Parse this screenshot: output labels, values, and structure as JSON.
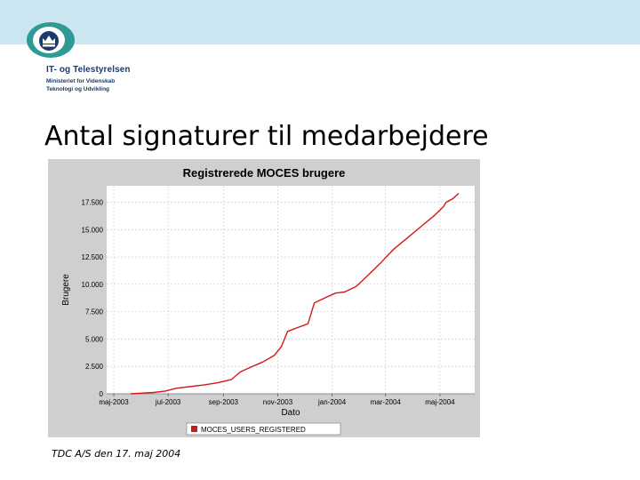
{
  "header": {
    "org_name": "IT- og Telestyrelsen",
    "ministry_line1": "Ministeriet for Videnskab",
    "ministry_line2": "Teknologi og Udvikling",
    "band_color": "#c9e6f1",
    "logo_icon": "crown-icon"
  },
  "slide": {
    "title": "Antal signaturer til medarbejdere",
    "footer": "TDC A/S den 17. maj 2004"
  },
  "chart_data": {
    "type": "line",
    "title": "Registrerede MOCES brugere",
    "xlabel": "Dato",
    "ylabel": "Brugere",
    "x_tick_labels": [
      "maj-2003",
      "jul-2003",
      "sep-2003",
      "nov-2003",
      "jan-2004",
      "mar-2004",
      "maj-2004"
    ],
    "y_tick_labels": [
      "0",
      "2.500",
      "5.000",
      "7.500",
      "10.000",
      "12.500",
      "15.000",
      "17.500"
    ],
    "y_ticks": [
      0,
      2500,
      5000,
      7500,
      10000,
      12500,
      15000,
      17500
    ],
    "ylim": [
      0,
      19000
    ],
    "grid": true,
    "legend_position": "bottom",
    "series": [
      {
        "name": "MOCES_USERS_REGISTERED",
        "color": "#d01818",
        "points": [
          [
            "2003-05-20",
            0
          ],
          [
            "2003-06-01",
            60
          ],
          [
            "2003-06-15",
            120
          ],
          [
            "2003-06-28",
            250
          ],
          [
            "2003-07-10",
            500
          ],
          [
            "2003-07-25",
            650
          ],
          [
            "2003-08-10",
            800
          ],
          [
            "2003-08-25",
            1000
          ],
          [
            "2003-09-10",
            1300
          ],
          [
            "2003-09-20",
            2000
          ],
          [
            "2003-10-01",
            2400
          ],
          [
            "2003-10-15",
            2900
          ],
          [
            "2003-10-28",
            3500
          ],
          [
            "2003-11-05",
            4300
          ],
          [
            "2003-11-12",
            5700
          ],
          [
            "2003-11-25",
            6100
          ],
          [
            "2003-12-05",
            6400
          ],
          [
            "2003-12-12",
            8300
          ],
          [
            "2003-12-25",
            8800
          ],
          [
            "2004-01-05",
            9200
          ],
          [
            "2004-01-15",
            9300
          ],
          [
            "2004-01-28",
            9800
          ],
          [
            "2004-02-10",
            10800
          ],
          [
            "2004-02-25",
            12000
          ],
          [
            "2004-03-10",
            13200
          ],
          [
            "2004-03-25",
            14200
          ],
          [
            "2004-04-10",
            15300
          ],
          [
            "2004-04-25",
            16300
          ],
          [
            "2004-05-05",
            17100
          ],
          [
            "2004-05-08",
            17500
          ],
          [
            "2004-05-15",
            17800
          ],
          [
            "2004-05-22",
            18300
          ]
        ]
      }
    ]
  }
}
